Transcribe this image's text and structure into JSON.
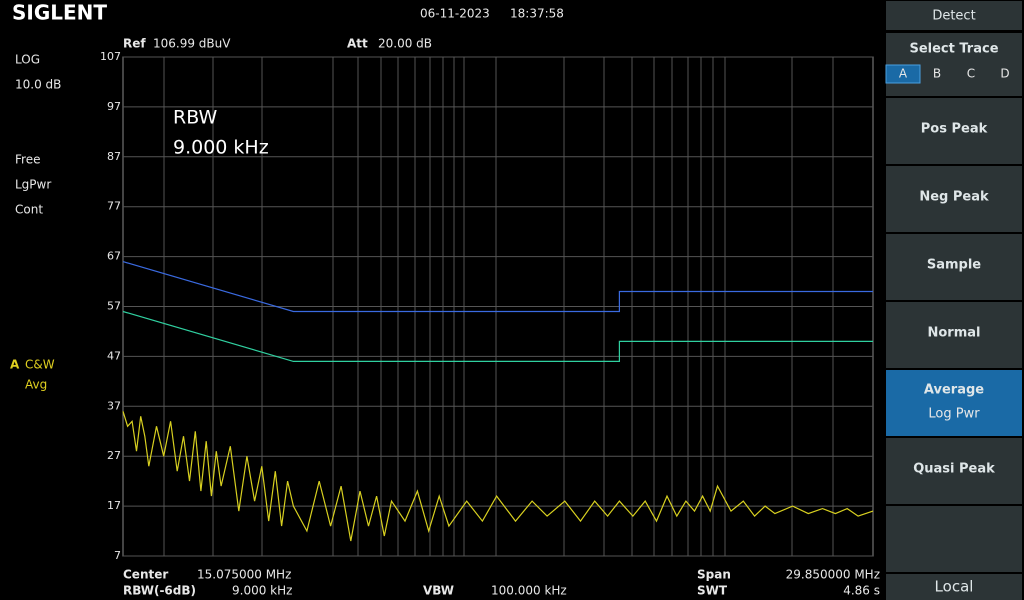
{
  "header": {
    "logo": "SIGLENT",
    "date": "06-11-2023",
    "time": "18:37:58"
  },
  "status": {
    "ref_label": "Ref",
    "ref_value": "106.99 dBuV",
    "att_label": "Att",
    "att_value": "20.00 dB",
    "scale": "LOG",
    "scale_div": "10.0 dB",
    "sweep": "Free",
    "detector": "LgPwr",
    "mode": "Cont",
    "trace_id": "A",
    "trace_mode": "C&W",
    "trace_avg": "Avg"
  },
  "menu": {
    "title": "Detect",
    "select_trace": "Select Trace",
    "traces": [
      "A",
      "B",
      "C",
      "D"
    ],
    "buttons": [
      {
        "label": "Pos Peak"
      },
      {
        "label": "Neg Peak"
      },
      {
        "label": "Sample"
      },
      {
        "label": "Normal"
      },
      {
        "label": "Average",
        "sub": "Log Pwr"
      },
      {
        "label": "Quasi Peak"
      }
    ],
    "local": "Local"
  },
  "footer": {
    "center_label": "Center",
    "center_value": "15.075000 MHz",
    "span_label": "Span",
    "span_value": "29.850000 MHz",
    "rbw_label": "RBW(-6dB)",
    "rbw_value": "9.000 kHz",
    "vbw_label": "VBW",
    "vbw_value": "100.000 kHz",
    "swt_label": "SWT",
    "swt_value": "4.86 s"
  },
  "chart_data": {
    "type": "line",
    "annotation": [
      "RBW",
      "9.000 kHz"
    ],
    "xlim": [
      0.15,
      30
    ],
    "log_x": true,
    "ylim": [
      7,
      107
    ],
    "yticks": [
      107,
      97,
      87,
      77,
      67,
      57,
      47,
      37,
      27,
      17,
      7
    ],
    "grid": true,
    "series": [
      {
        "color": "#d8d020",
        "x": [
          0.15,
          0.155,
          0.16,
          0.165,
          0.17,
          0.175,
          0.18,
          0.19,
          0.2,
          0.21,
          0.22,
          0.23,
          0.24,
          0.25,
          0.26,
          0.27,
          0.28,
          0.29,
          0.3,
          0.32,
          0.34,
          0.36,
          0.38,
          0.4,
          0.42,
          0.44,
          0.46,
          0.48,
          0.5,
          0.55,
          0.6,
          0.65,
          0.7,
          0.75,
          0.8,
          0.85,
          0.9,
          0.95,
          1,
          1.1,
          1.2,
          1.3,
          1.4,
          1.5,
          1.7,
          1.9,
          2.1,
          2.4,
          2.7,
          3,
          3.4,
          3.8,
          4.2,
          4.6,
          5,
          5.5,
          6,
          6.5,
          7,
          7.5,
          8,
          8.5,
          9,
          9.5,
          10,
          11,
          12,
          13,
          14,
          15,
          17,
          19,
          21,
          23,
          25,
          27,
          30
        ],
        "values": [
          36,
          33,
          34,
          28,
          35,
          31,
          25,
          33,
          27,
          34,
          24,
          31,
          22,
          32,
          20,
          30,
          19,
          28,
          21,
          29,
          16,
          27,
          18,
          25,
          14,
          24,
          13,
          22,
          17,
          12,
          22,
          13,
          21,
          10,
          20,
          13,
          19,
          11,
          18,
          14,
          20,
          12,
          19,
          13,
          18,
          14,
          19,
          14,
          18,
          15,
          18,
          14,
          18,
          15,
          18,
          15,
          18,
          14,
          19,
          15,
          18,
          16,
          19,
          16,
          21,
          16,
          18,
          15,
          17,
          15.5,
          17,
          15.5,
          16.5,
          15.5,
          16.5,
          15,
          16
        ]
      },
      {
        "color": "#3a6ae0",
        "x": [
          0.15,
          0.5,
          5,
          5,
          30
        ],
        "values": [
          66,
          56,
          56,
          60,
          60
        ]
      },
      {
        "color": "#30d0a0",
        "x": [
          0.15,
          0.5,
          5,
          5,
          30
        ],
        "values": [
          56,
          46,
          46,
          50,
          50
        ]
      }
    ]
  }
}
